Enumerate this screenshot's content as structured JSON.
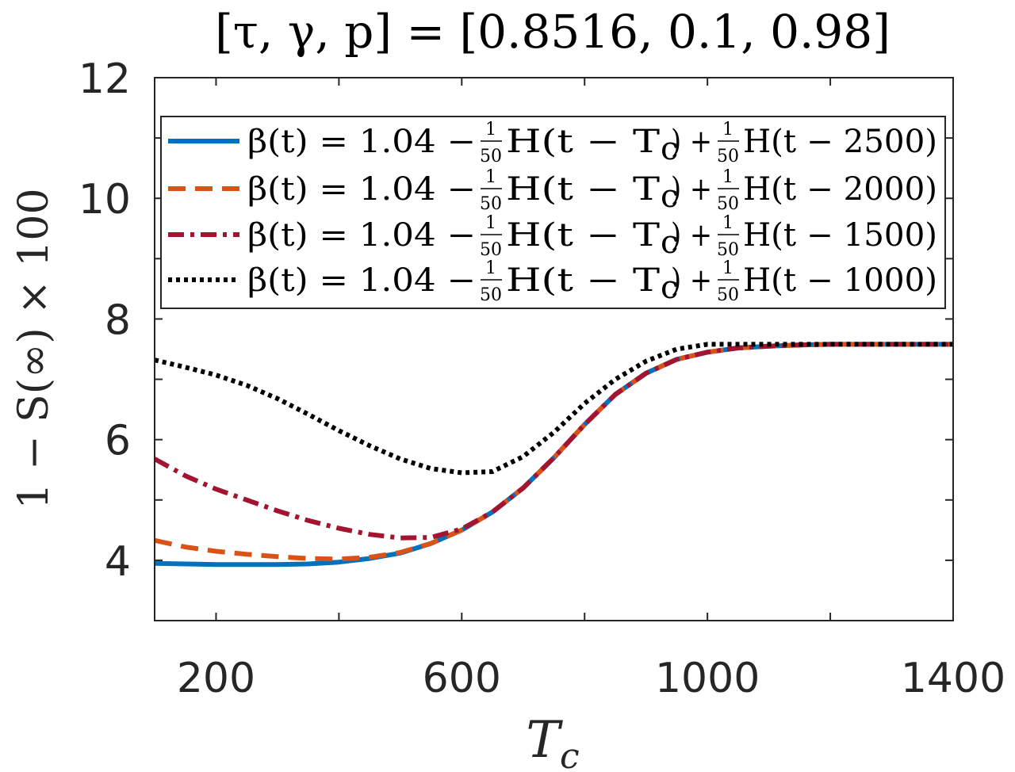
{
  "chart_data": {
    "type": "line",
    "title": "[τ, γ, p] = [0.8516, 0.1, 0.98]",
    "xlabel": "T_c",
    "ylabel": "1 − S(∞) × 100",
    "xlim": [
      100,
      1400
    ],
    "ylim": [
      3,
      12
    ],
    "xticks": [
      200,
      600,
      1000,
      1400
    ],
    "xticks_minor": [
      400,
      800,
      1200
    ],
    "yticks": [
      4,
      6,
      8,
      10,
      12
    ],
    "yticks_minor": [
      3,
      5,
      7,
      9,
      11
    ],
    "grid": false,
    "legend_position": "top",
    "series": [
      {
        "name": "β(t) = 1.04 − (1/50)H(t − T_c) + (1/50)H(t − 2500)",
        "legend": {
          "lhs": "β(t) = 1.04 −",
          "mid": "H(t − T",
          "sub": "c",
          "rhs_op": ") +",
          "end": "H(t − 2500)",
          "frac_num": "1",
          "frac_den": "50"
        },
        "color": "#0072BD",
        "dash": "solid",
        "x": [
          100,
          150,
          200,
          250,
          300,
          350,
          400,
          450,
          500,
          550,
          600,
          650,
          700,
          750,
          800,
          850,
          900,
          950,
          1000,
          1050,
          1100,
          1150,
          1200,
          1250,
          1300,
          1350,
          1400
        ],
        "y": [
          3.95,
          3.94,
          3.93,
          3.93,
          3.93,
          3.94,
          3.97,
          4.03,
          4.12,
          4.28,
          4.5,
          4.8,
          5.2,
          5.7,
          6.25,
          6.75,
          7.1,
          7.33,
          7.45,
          7.52,
          7.55,
          7.57,
          7.58,
          7.58,
          7.58,
          7.58,
          7.58
        ]
      },
      {
        "name": "β(t) = 1.04 − (1/50)H(t − T_c) + (1/50)H(t − 2000)",
        "legend": {
          "lhs": "β(t) = 1.04 −",
          "mid": "H(t − T",
          "sub": "c",
          "rhs_op": ") +",
          "end": "H(t − 2000)",
          "frac_num": "1",
          "frac_den": "50"
        },
        "color": "#D95319",
        "dash": "dashed",
        "x": [
          100,
          150,
          200,
          250,
          300,
          350,
          400,
          450,
          500,
          550,
          600,
          650,
          700,
          750,
          800,
          850,
          900,
          950,
          1000,
          1050,
          1100,
          1150,
          1200,
          1250,
          1300,
          1350,
          1400
        ],
        "y": [
          4.33,
          4.22,
          4.15,
          4.1,
          4.06,
          4.03,
          4.02,
          4.05,
          4.13,
          4.28,
          4.5,
          4.8,
          5.2,
          5.7,
          6.25,
          6.75,
          7.1,
          7.33,
          7.45,
          7.52,
          7.55,
          7.57,
          7.58,
          7.58,
          7.58,
          7.58,
          7.58
        ]
      },
      {
        "name": "β(t) = 1.04 − (1/50)H(t − T_c) + (1/50)H(t − 1500)",
        "legend": {
          "lhs": "β(t) = 1.04 −",
          "mid": "H(t − T",
          "sub": "c",
          "rhs_op": ") +",
          "end": "H(t − 1500)",
          "frac_num": "1",
          "frac_den": "50"
        },
        "color": "#A2142F",
        "dash": "dashdot",
        "x": [
          100,
          150,
          200,
          250,
          300,
          350,
          400,
          450,
          500,
          550,
          600,
          650,
          700,
          750,
          800,
          850,
          900,
          950,
          1000,
          1050,
          1100,
          1150,
          1200,
          1250,
          1300,
          1350,
          1400
        ],
        "y": [
          5.68,
          5.4,
          5.18,
          5.0,
          4.82,
          4.66,
          4.53,
          4.43,
          4.37,
          4.38,
          4.52,
          4.8,
          5.2,
          5.7,
          6.25,
          6.75,
          7.1,
          7.33,
          7.45,
          7.52,
          7.55,
          7.57,
          7.58,
          7.58,
          7.58,
          7.58,
          7.58
        ]
      },
      {
        "name": "β(t) = 1.04 − (1/50)H(t − T_c) + (1/50)H(t − 1000)",
        "legend": {
          "lhs": "β(t) = 1.04 −",
          "mid": "H(t − T",
          "sub": "c",
          "rhs_op": ") +",
          "end": "H(t − 1000)",
          "frac_num": "1",
          "frac_den": "50"
        },
        "color": "#000000",
        "dash": "dotted",
        "x": [
          100,
          150,
          200,
          250,
          300,
          350,
          400,
          450,
          500,
          550,
          600,
          650,
          700,
          750,
          800,
          850,
          900,
          950,
          1000,
          1050,
          1100,
          1150,
          1200,
          1250,
          1300,
          1350,
          1400
        ],
        "y": [
          7.32,
          7.2,
          7.07,
          6.9,
          6.68,
          6.42,
          6.15,
          5.9,
          5.68,
          5.52,
          5.45,
          5.47,
          5.72,
          6.12,
          6.6,
          7.0,
          7.3,
          7.5,
          7.58,
          7.58,
          7.58,
          7.58,
          7.58,
          7.58,
          7.58,
          7.58,
          7.58
        ]
      }
    ]
  }
}
